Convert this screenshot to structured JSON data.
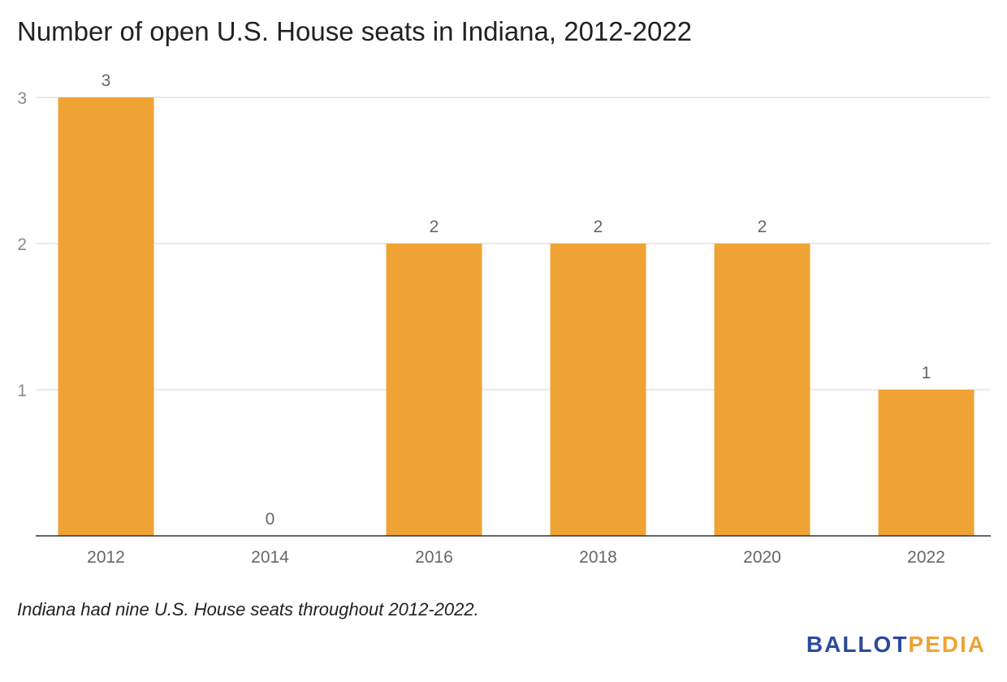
{
  "chart_data": {
    "type": "bar",
    "title": "Number of open U.S. House seats in Indiana, 2012-2022",
    "categories": [
      "2012",
      "2014",
      "2016",
      "2018",
      "2020",
      "2022"
    ],
    "values": [
      3,
      0,
      2,
      2,
      2,
      1
    ],
    "data_labels": [
      "3",
      "0",
      "2",
      "2",
      "2",
      "1"
    ],
    "yticks": [
      1,
      2,
      3
    ],
    "ylim": [
      0,
      3.3
    ],
    "xlabel": "",
    "ylabel": "",
    "grid": true,
    "bar_color": "#f0a335",
    "caption": "Indiana had nine U.S. House seats throughout 2012-2022."
  },
  "branding": {
    "logo_part1": "BALLOT",
    "logo_part2": "PEDIA",
    "logo_color1": "#2b4a9b",
    "logo_color2": "#f0a335"
  }
}
